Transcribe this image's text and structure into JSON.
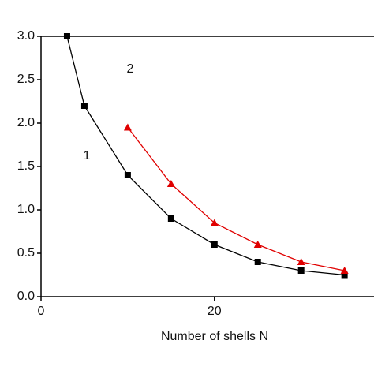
{
  "chart_data": {
    "type": "line",
    "x_label": "Number of shells N",
    "annotations": [
      "1",
      "2"
    ],
    "xlim": [
      0,
      38.4
    ],
    "xticks": [
      0,
      20
    ],
    "ylim": [
      0,
      3.0
    ],
    "yticks": [
      {
        "value": 0,
        "label": "0.0"
      },
      {
        "value": 0.5,
        "label": "0.5"
      },
      {
        "value": 1,
        "label": "1.0"
      },
      {
        "value": 1.5,
        "label": "1.5"
      },
      {
        "value": 2,
        "label": "2.0"
      },
      {
        "value": 2.5,
        "label": "2.5"
      },
      {
        "value": 3,
        "label": "3.0"
      }
    ],
    "series": [
      {
        "color": "#000000",
        "marker": "square",
        "x": [
          3,
          5,
          10,
          15,
          20,
          25,
          30,
          35
        ],
        "values": [
          3.0,
          2.2,
          1.4,
          0.9,
          0.6,
          0.4,
          0.3,
          0.25
        ]
      },
      {
        "color": "#e00000",
        "marker": "triangle",
        "x": [
          10,
          15,
          20,
          25,
          30,
          35
        ],
        "values": [
          1.95,
          1.3,
          0.85,
          0.6,
          0.4,
          0.3
        ]
      }
    ]
  }
}
